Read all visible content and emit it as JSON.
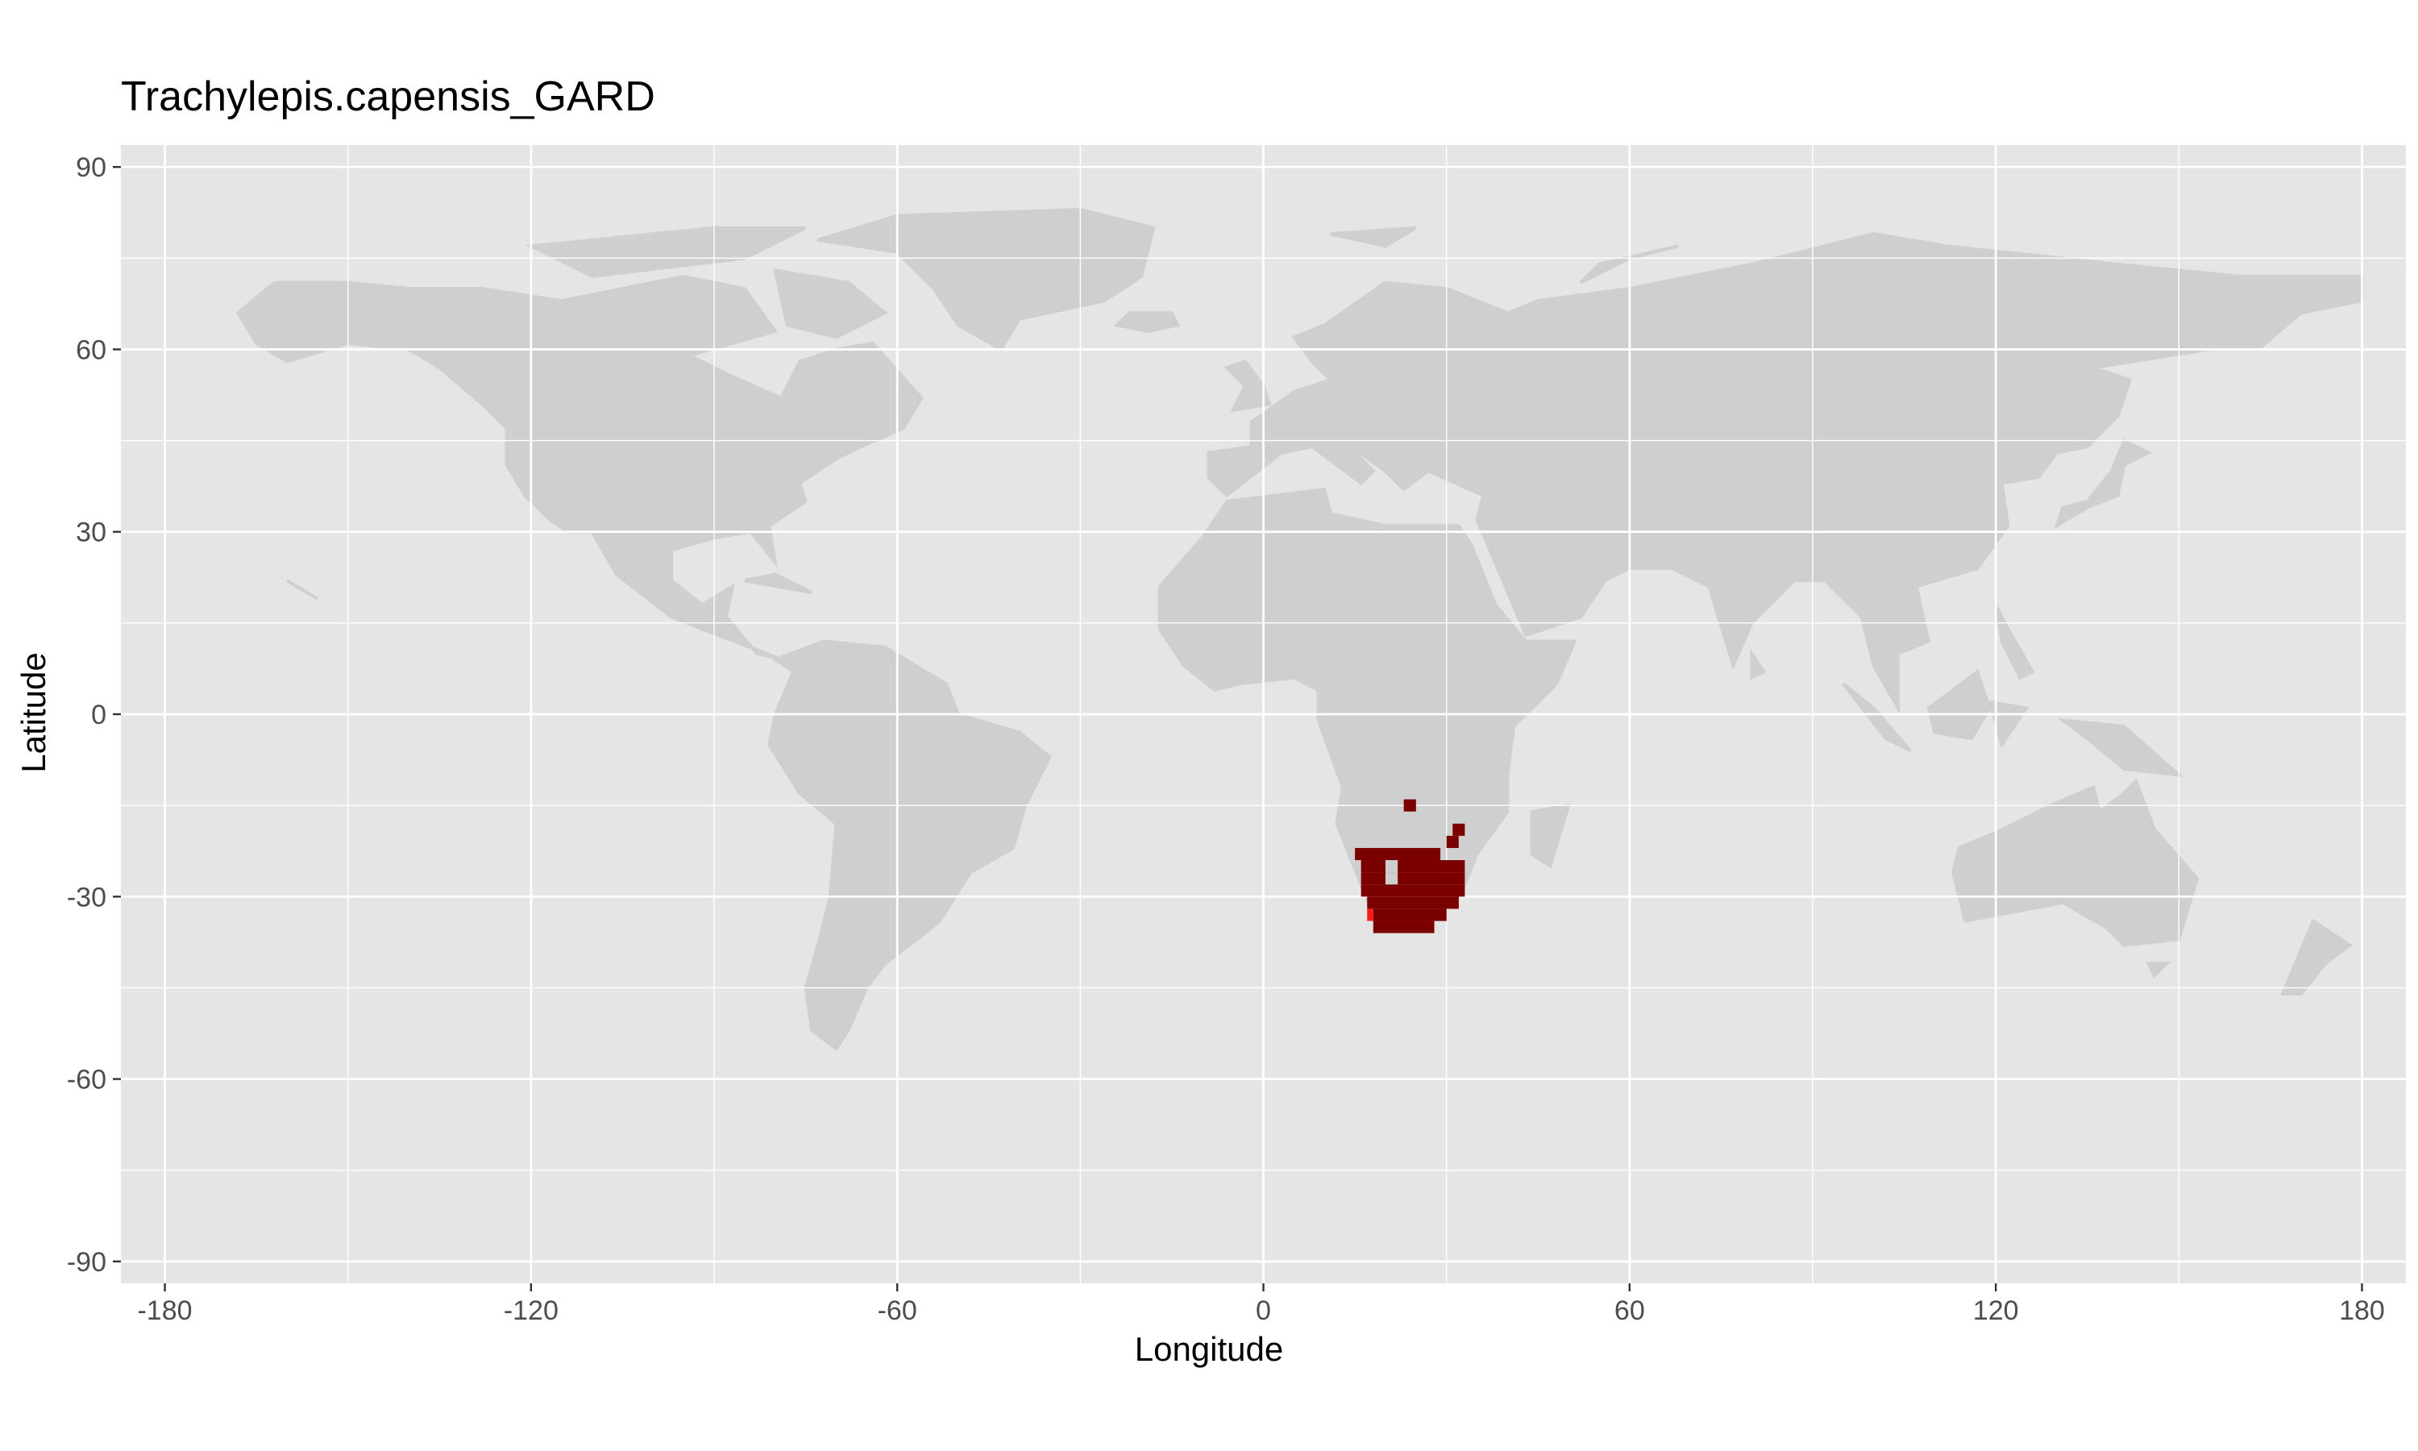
{
  "chart_data": {
    "type": "heatmap",
    "title": "Trachylepis.capensis_GARD",
    "xlabel": "Longitude",
    "ylabel": "Latitude",
    "xlim": [
      -180,
      180
    ],
    "ylim": [
      -90,
      90
    ],
    "x_ticks": [
      "-180",
      "-120",
      "-60",
      "0",
      "60",
      "120",
      "180"
    ],
    "y_ticks": [
      "90",
      "60",
      "30",
      "0",
      "-30",
      "-60",
      "-90"
    ],
    "panel_background": "#e5e5e5",
    "grid": true,
    "grid_color": "#ffffff",
    "land_color": "#cfcfcf",
    "range_color_primary": "#7a0000",
    "range_color_edge": "#ff1a1a",
    "legend": "none",
    "range_cells": [
      [
        -24,
        15,
        20
      ],
      [
        -24,
        19,
        29
      ],
      [
        -22,
        30,
        32
      ],
      [
        -26,
        16,
        33
      ],
      [
        -28,
        16,
        33
      ],
      [
        -30,
        16,
        33
      ],
      [
        -32,
        17,
        32
      ],
      [
        -34,
        18,
        30
      ],
      [
        -36,
        18,
        28
      ],
      [
        -16,
        23,
        25
      ],
      [
        -20,
        31,
        33
      ]
    ],
    "range_edge_cells": [
      [
        -34,
        17,
        18
      ],
      [
        -34,
        28,
        30
      ],
      [
        -32,
        31,
        32
      ]
    ],
    "range_hole_cells": [
      [
        -26,
        20,
        22
      ],
      [
        -28,
        20,
        22
      ]
    ]
  }
}
